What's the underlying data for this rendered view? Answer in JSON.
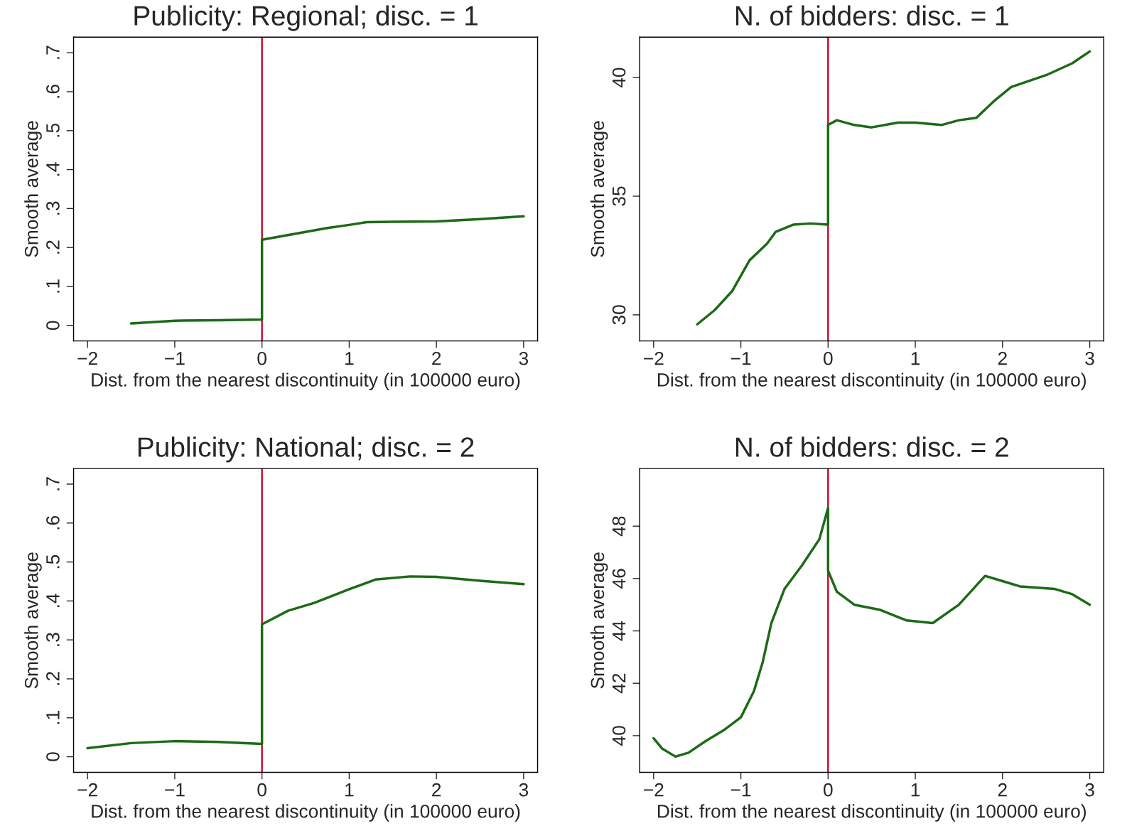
{
  "chart_data": [
    {
      "type": "line",
      "title": "Publicity: Regional; disc. = 1",
      "xlabel": "Dist. from the nearest discontinuity (in 100000 euro)",
      "ylabel": "Smooth average",
      "xlim": [
        -2.16,
        3.16
      ],
      "ylim": [
        -0.04,
        0.74
      ],
      "xticks": [
        -2,
        -1,
        0,
        1,
        2,
        3
      ],
      "yticks": [
        0,
        {
          "value": 0.1,
          "label": ".1"
        },
        {
          "value": 0.2,
          "label": ".2"
        },
        {
          "value": 0.3,
          "label": ".3"
        },
        {
          "value": 0.4,
          "label": ".4"
        },
        {
          "value": 0.5,
          "label": ".5"
        },
        {
          "value": 0.6,
          "label": ".6"
        },
        {
          "value": 0.7,
          "label": ".7"
        }
      ],
      "grid": false,
      "legend": false,
      "ref_lines": [
        {
          "axis": "x",
          "value": 0,
          "color": "#c8102e"
        }
      ],
      "series": [
        {
          "color": "#1d6a16",
          "x": [
            -1.5,
            -1,
            -0.5,
            0,
            0,
            0.25,
            0.5,
            0.75,
            1,
            1.2,
            1.5,
            2,
            2.5,
            3
          ],
          "values": [
            0.005,
            0.012,
            0.013,
            0.015,
            0.22,
            0.23,
            0.24,
            0.25,
            0.258,
            0.265,
            0.266,
            0.267,
            0.273,
            0.28
          ]
        }
      ]
    },
    {
      "type": "line",
      "title": "N. of bidders: disc. = 1",
      "xlabel": "Dist. from the nearest discontinuity (in 100000 euro)",
      "ylabel": "Smooth average",
      "xlim": [
        -2.16,
        3.16
      ],
      "ylim": [
        28.9,
        41.7
      ],
      "xticks": [
        -2,
        -1,
        0,
        1,
        2,
        3
      ],
      "yticks": [
        30,
        35,
        40
      ],
      "grid": false,
      "legend": false,
      "ref_lines": [
        {
          "axis": "x",
          "value": 0,
          "color": "#c8102e"
        }
      ],
      "series": [
        {
          "color": "#1d6a16",
          "x": [
            -1.5,
            -1.3,
            -1.1,
            -0.9,
            -0.7,
            -0.6,
            -0.4,
            -0.2,
            0,
            0,
            0.1,
            0.3,
            0.5,
            0.8,
            1.0,
            1.3,
            1.5,
            1.7,
            1.9,
            2.1,
            2.5,
            2.8,
            3
          ],
          "values": [
            29.6,
            30.2,
            31.0,
            32.3,
            33.0,
            33.5,
            33.8,
            33.85,
            33.8,
            38.0,
            38.2,
            38.0,
            37.9,
            38.1,
            38.1,
            38.0,
            38.2,
            38.3,
            39.0,
            39.6,
            40.1,
            40.6,
            41.1
          ]
        }
      ]
    },
    {
      "type": "line",
      "title": "Publicity: National; disc. = 2",
      "xlabel": "Dist. from the nearest discontinuity (in 100000 euro)",
      "ylabel": "Smooth average",
      "xlim": [
        -2.16,
        3.16
      ],
      "ylim": [
        -0.04,
        0.74
      ],
      "xticks": [
        -2,
        -1,
        0,
        1,
        2,
        3
      ],
      "yticks": [
        0,
        {
          "value": 0.1,
          "label": ".1"
        },
        {
          "value": 0.2,
          "label": ".2"
        },
        {
          "value": 0.3,
          "label": ".3"
        },
        {
          "value": 0.4,
          "label": ".4"
        },
        {
          "value": 0.5,
          "label": ".5"
        },
        {
          "value": 0.6,
          "label": ".6"
        },
        {
          "value": 0.7,
          "label": ".7"
        }
      ],
      "grid": false,
      "legend": false,
      "ref_lines": [
        {
          "axis": "x",
          "value": 0,
          "color": "#c8102e"
        }
      ],
      "series": [
        {
          "color": "#1d6a16",
          "x": [
            -2,
            -1.5,
            -1,
            -0.5,
            0,
            0,
            0.3,
            0.6,
            1.0,
            1.3,
            1.7,
            2,
            2.5,
            3
          ],
          "values": [
            0.022,
            0.035,
            0.04,
            0.038,
            0.033,
            0.34,
            0.375,
            0.395,
            0.43,
            0.455,
            0.463,
            0.462,
            0.452,
            0.443
          ]
        }
      ]
    },
    {
      "type": "line",
      "title": "N. of bidders: disc. = 2",
      "xlabel": "Dist. from the nearest discontinuity (in 100000 euro)",
      "ylabel": "Smooth average",
      "xlim": [
        -2.16,
        3.16
      ],
      "ylim": [
        38.6,
        50.2
      ],
      "xticks": [
        -2,
        -1,
        0,
        1,
        2,
        3
      ],
      "yticks": [
        40,
        42,
        44,
        46,
        48
      ],
      "grid": false,
      "legend": false,
      "ref_lines": [
        {
          "axis": "x",
          "value": 0,
          "color": "#c8102e"
        }
      ],
      "series": [
        {
          "color": "#1d6a16",
          "x": [
            -2,
            -1.9,
            -1.75,
            -1.6,
            -1.4,
            -1.2,
            -1.0,
            -0.85,
            -0.75,
            -0.65,
            -0.5,
            -0.3,
            -0.1,
            0,
            0,
            0.1,
            0.3,
            0.6,
            0.9,
            1.2,
            1.5,
            1.8,
            2.0,
            2.2,
            2.6,
            2.8,
            3
          ],
          "values": [
            39.9,
            39.5,
            39.2,
            39.35,
            39.8,
            40.2,
            40.7,
            41.7,
            42.8,
            44.3,
            45.6,
            46.5,
            47.5,
            48.7,
            46.3,
            45.5,
            45.0,
            44.8,
            44.4,
            44.3,
            45.0,
            46.1,
            45.9,
            45.7,
            45.6,
            45.4,
            45.0
          ]
        }
      ]
    }
  ]
}
